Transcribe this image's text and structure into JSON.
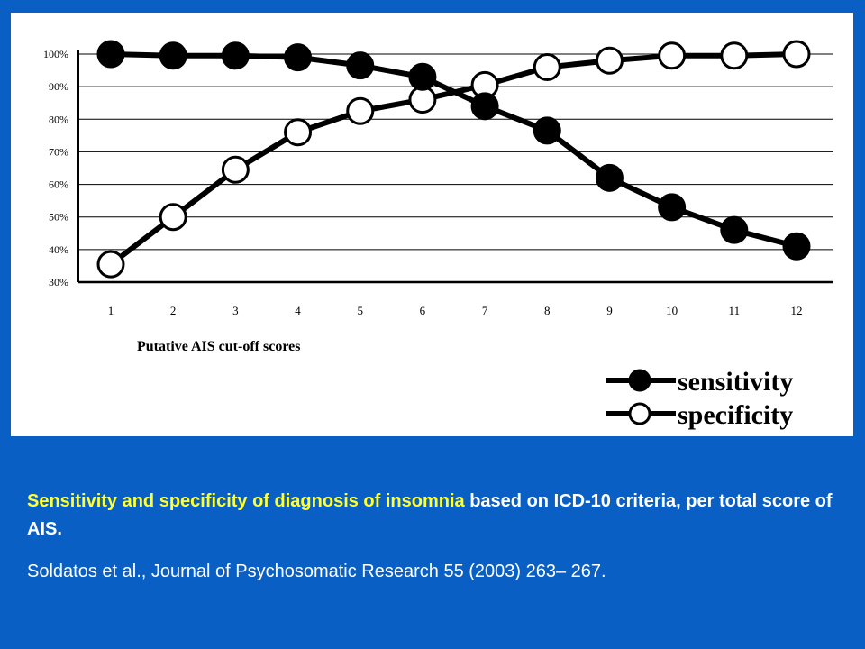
{
  "chart_data": {
    "type": "line",
    "x": [
      1,
      2,
      3,
      4,
      5,
      6,
      7,
      8,
      9,
      10,
      11,
      12
    ],
    "xlabel": "Putative AIS cut-off scores",
    "ylabel": "",
    "ylim": [
      30,
      100
    ],
    "y_ticks": [
      "30%",
      "40%",
      "50%",
      "60%",
      "70%",
      "80%",
      "90%",
      "100%"
    ],
    "y_tick_values": [
      30,
      40,
      50,
      60,
      70,
      80,
      90,
      100
    ],
    "grid": "horizontal",
    "legend": "bottom-right",
    "series": [
      {
        "name": "sensitivity",
        "marker": "filled-circle",
        "values": [
          100,
          99.5,
          99.5,
          99,
          96.5,
          93,
          84,
          76.5,
          62,
          53,
          46,
          41
        ]
      },
      {
        "name": "specificity",
        "marker": "hollow-circle",
        "values": [
          35.5,
          50,
          64.5,
          76,
          82.5,
          86,
          90.5,
          96,
          98,
          99.5,
          99.5,
          100
        ]
      }
    ],
    "colors": {
      "line": "#000000",
      "grid": "#000000",
      "panel": "#ffffff"
    }
  },
  "caption": {
    "highlight": "Sensitivity and specificity of diagnosis of insomnia",
    "rest": " based on ICD-10 criteria, per total score of AIS."
  },
  "citation": "Soldatos et al., Journal of Psychosomatic Research 55 (2003) 263– 267.",
  "colors": {
    "background": "#0a5fc4",
    "highlight": "#ffff33",
    "text": "#ffffff"
  }
}
